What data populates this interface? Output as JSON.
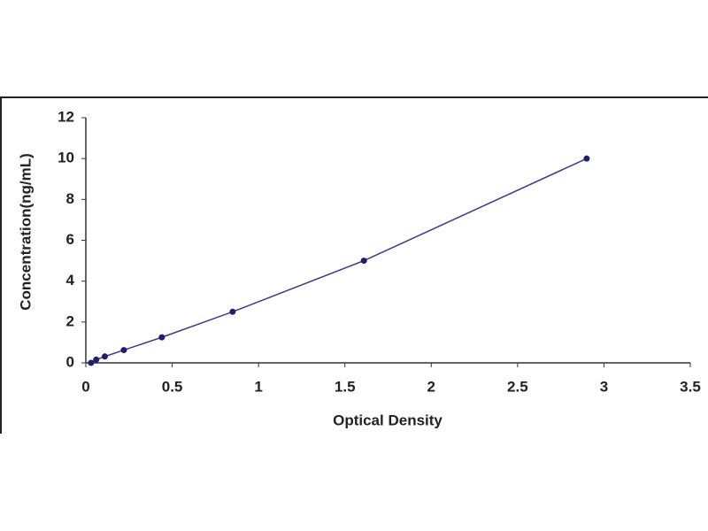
{
  "chart_data": {
    "type": "line",
    "markers": true,
    "x_label": "Optical Density",
    "y_label": "Concentration(ng/mL)",
    "x": [
      0.03,
      0.06,
      0.11,
      0.22,
      0.44,
      0.85,
      1.61,
      2.9
    ],
    "series": [
      {
        "color": "#3a3a8c",
        "values": [
          0,
          0.156,
          0.312,
          0.625,
          1.25,
          2.5,
          5,
          10
        ]
      }
    ],
    "xlim": [
      0,
      3.5
    ],
    "xticks": [
      0,
      0.5,
      1,
      1.5,
      2,
      2.5,
      3,
      3.5
    ],
    "ylim": [
      0,
      12
    ],
    "yticks": [
      0,
      2,
      4,
      6,
      8,
      10,
      12
    ],
    "grid": false
  }
}
